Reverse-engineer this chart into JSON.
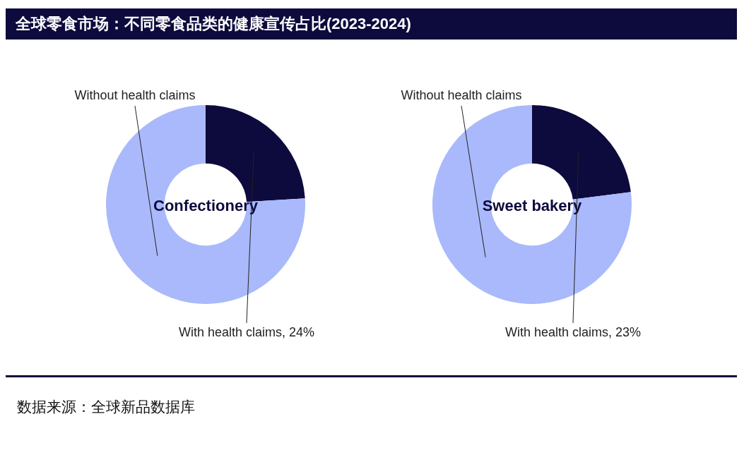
{
  "chart_data": [
    {
      "type": "donut",
      "title": "Confectionery",
      "categories": [
        "With health claims, 24%",
        "Without health claims"
      ],
      "values": [
        24,
        76
      ],
      "colors": [
        "#0d0a3d",
        "#a9b9fb"
      ],
      "legend": false
    },
    {
      "type": "donut",
      "title": "Sweet bakery",
      "categories": [
        "With health claims, 23%",
        "Without health claims"
      ],
      "values": [
        23,
        77
      ],
      "colors": [
        "#0d0a3d",
        "#a9b9fb"
      ],
      "legend": false
    },
    {
      "type": "other",
      "title": "全球零食市场：不同零食品类的健康宣传占比(2023-2024)",
      "annotations": [
        "数据来源：全球新品数据库"
      ]
    }
  ]
}
